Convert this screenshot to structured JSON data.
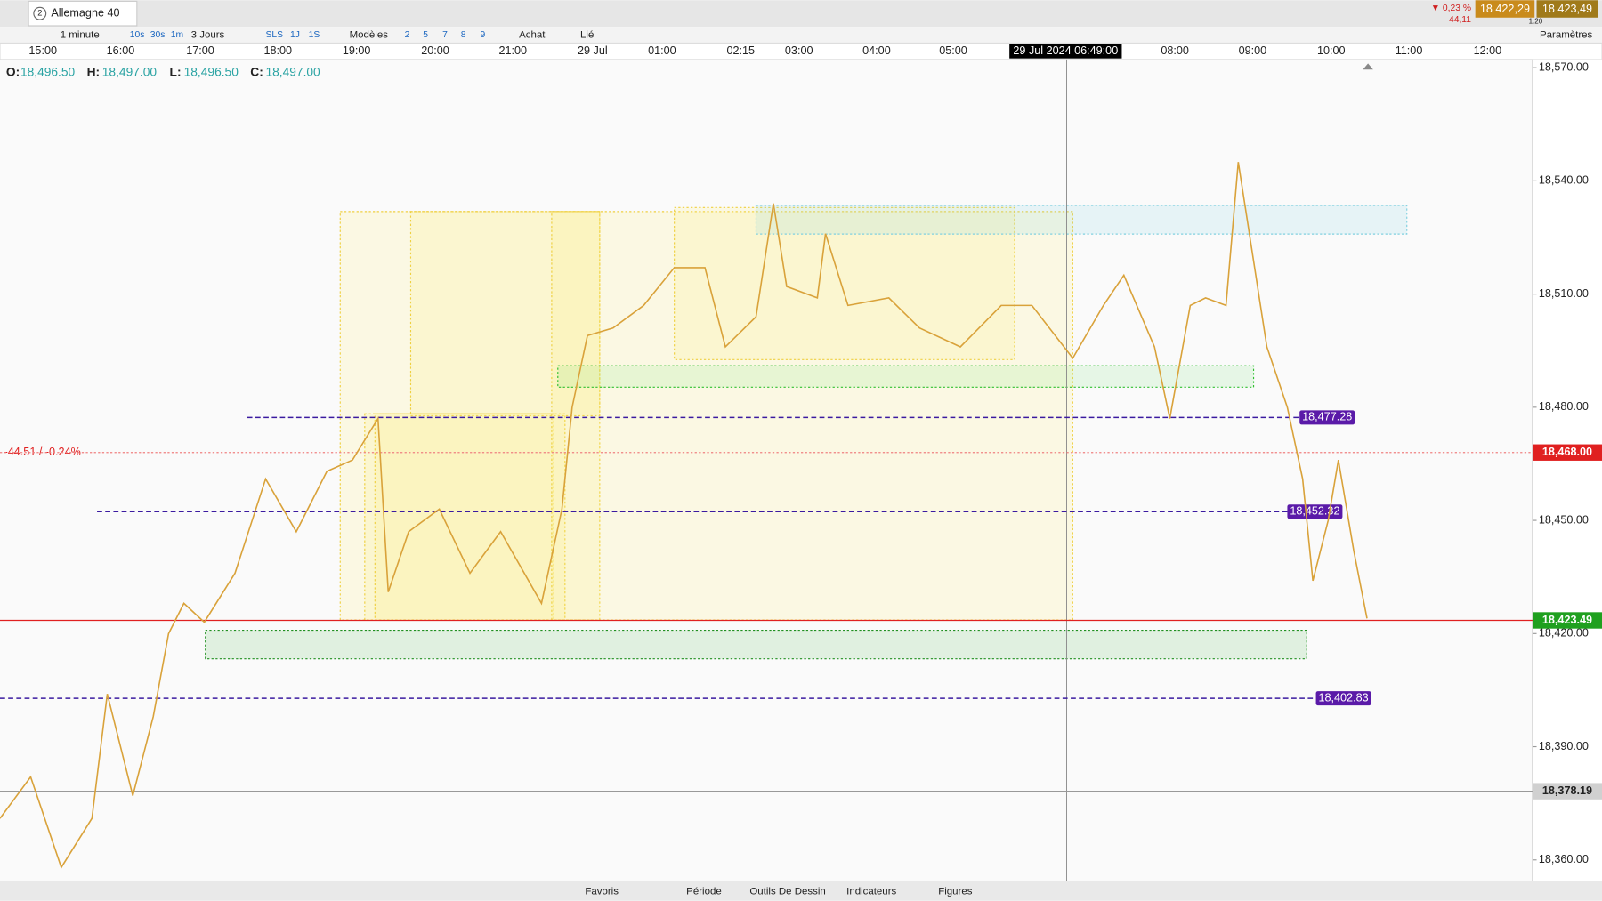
{
  "header": {
    "tab_number": "2",
    "instrument": "Allemagne 40",
    "change_pct": "▼ 0,23 %",
    "change_abs": "44,11",
    "bid": "18 422,29",
    "ask": "18 423,49",
    "spread": "1.20"
  },
  "toolbar": {
    "interval": "1 minute",
    "intervals": [
      "10s",
      "30s",
      "1m"
    ],
    "range": "3 Jours",
    "ranges": [
      "SLS",
      "1J",
      "1S"
    ],
    "templates": "Modèles",
    "layouts": [
      "2",
      "5",
      "7",
      "8",
      "9"
    ],
    "buy": "Achat",
    "linked": "Lié",
    "settings": "Paramètres"
  },
  "chart_data": {
    "type": "line",
    "color": "#d9a23a",
    "time_labels": [
      "15:00",
      "16:00",
      "17:00",
      "18:00",
      "19:00",
      "20:00",
      "21:00",
      "29 Jul",
      "01:00",
      "02:15",
      "03:00",
      "04:00",
      "05:00",
      "08:00",
      "09:00",
      "10:00",
      "11:00",
      "12:00"
    ],
    "crosshair_time": "29 Jul 2024 06:49:00",
    "ohlc": [
      {
        "key": "O:",
        "value": "18,496.50"
      },
      {
        "key": "H:",
        "value": "18,497.00"
      },
      {
        "key": "L:",
        "value": "18,496.50"
      },
      {
        "key": "C:",
        "value": "18,497.00"
      }
    ],
    "values": [
      18371,
      18382,
      18358,
      18371,
      18404,
      18377,
      18398,
      18420,
      18428,
      18423,
      18436,
      18461,
      18447,
      18463,
      18466,
      18477,
      18431,
      18447,
      18453,
      18436,
      18447,
      18428,
      18453,
      18480,
      18499,
      18501,
      18507,
      18517,
      18517,
      18496,
      18504,
      18534,
      18512,
      18509,
      18526,
      18507,
      18509,
      18501,
      18496,
      18507,
      18507,
      18493,
      18507,
      18515,
      18496,
      18477,
      18507,
      18509,
      18507,
      18545,
      18531,
      18496,
      18480,
      18461,
      18434,
      18450,
      18466,
      18442,
      18424
    ],
    "ylim": [
      18354.3,
      18572.2
    ],
    "yticks": [
      {
        "value": 18360,
        "label": "18,360.00"
      },
      {
        "value": 18390,
        "label": "18,390.00"
      },
      {
        "value": 18420,
        "label": "18,420.00"
      },
      {
        "value": 18450,
        "label": "18,450.00"
      },
      {
        "value": 18480,
        "label": "18,480.00"
      },
      {
        "value": 18510,
        "label": "18,510.00"
      },
      {
        "value": 18540,
        "label": "18,540.00"
      },
      {
        "value": 18570,
        "label": "18,570.00"
      }
    ],
    "levels": [
      {
        "value": 18477.28,
        "label": "18,477.28"
      },
      {
        "value": 18452.32,
        "label": "18,452.32"
      },
      {
        "value": 18402.83,
        "label": "18,402.83"
      }
    ],
    "price_markers": [
      {
        "value": 18468.0,
        "label": "18,468.00",
        "color": "#e02020"
      },
      {
        "value": 18423.49,
        "label": "18,423.49",
        "color": "#1fa01f"
      },
      {
        "value": 18378.19,
        "label": "18,378.19",
        "color": "#d0d0d0"
      }
    ],
    "reference_annotation": "-44.51 / -0.24%"
  },
  "footer": {
    "tabs": [
      "Favoris",
      "Période",
      "Outils De Dessin",
      "Indicateurs",
      "Figures"
    ]
  }
}
